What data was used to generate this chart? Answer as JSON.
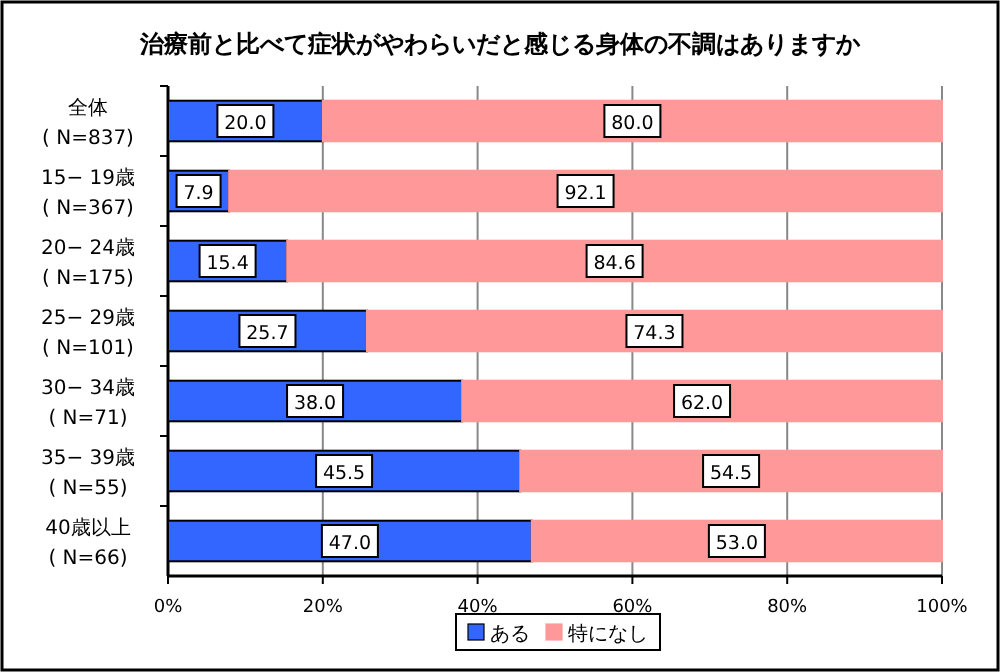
{
  "chart_data": {
    "type": "bar",
    "orientation": "horizontal",
    "stacked": true,
    "title": "治療前と比べて症状がやわらいだと感じる身体の不調はありますか",
    "categories": [
      "全体\n( N=837)",
      "15− 19歳\n( N=367)",
      "20− 24歳\n( N=175)",
      "25− 29歳\n( N=101)",
      "30− 34歳\n( N=71)",
      "35− 39歳\n( N=55)",
      "40歳以上\n( N=66)"
    ],
    "series": [
      {
        "name": "ある",
        "color": "#3366ff",
        "values": [
          20.0,
          7.9,
          15.4,
          25.7,
          38.0,
          45.5,
          47.0
        ]
      },
      {
        "name": "特になし",
        "color": "#ff9999",
        "values": [
          80.0,
          92.1,
          84.6,
          74.3,
          62.0,
          54.5,
          53.0
        ]
      }
    ],
    "value_labels": [
      [
        "20.0",
        "7.9",
        "15.4",
        "25.7",
        "38.0",
        "45.5",
        "47.0"
      ],
      [
        "80.0",
        "92.1",
        "84.6",
        "74.3",
        "62.0",
        "54.5",
        "53.0"
      ]
    ],
    "xlim": [
      0,
      100
    ],
    "xticks": [
      {
        "value": 0,
        "label": "0%"
      },
      {
        "value": 20,
        "label": "20%"
      },
      {
        "value": 40,
        "label": "40%"
      },
      {
        "value": 60,
        "label": "60%"
      },
      {
        "value": 80,
        "label": "80%"
      },
      {
        "value": 100,
        "label": "100%"
      }
    ],
    "grid": "x",
    "legend": "bottom"
  }
}
